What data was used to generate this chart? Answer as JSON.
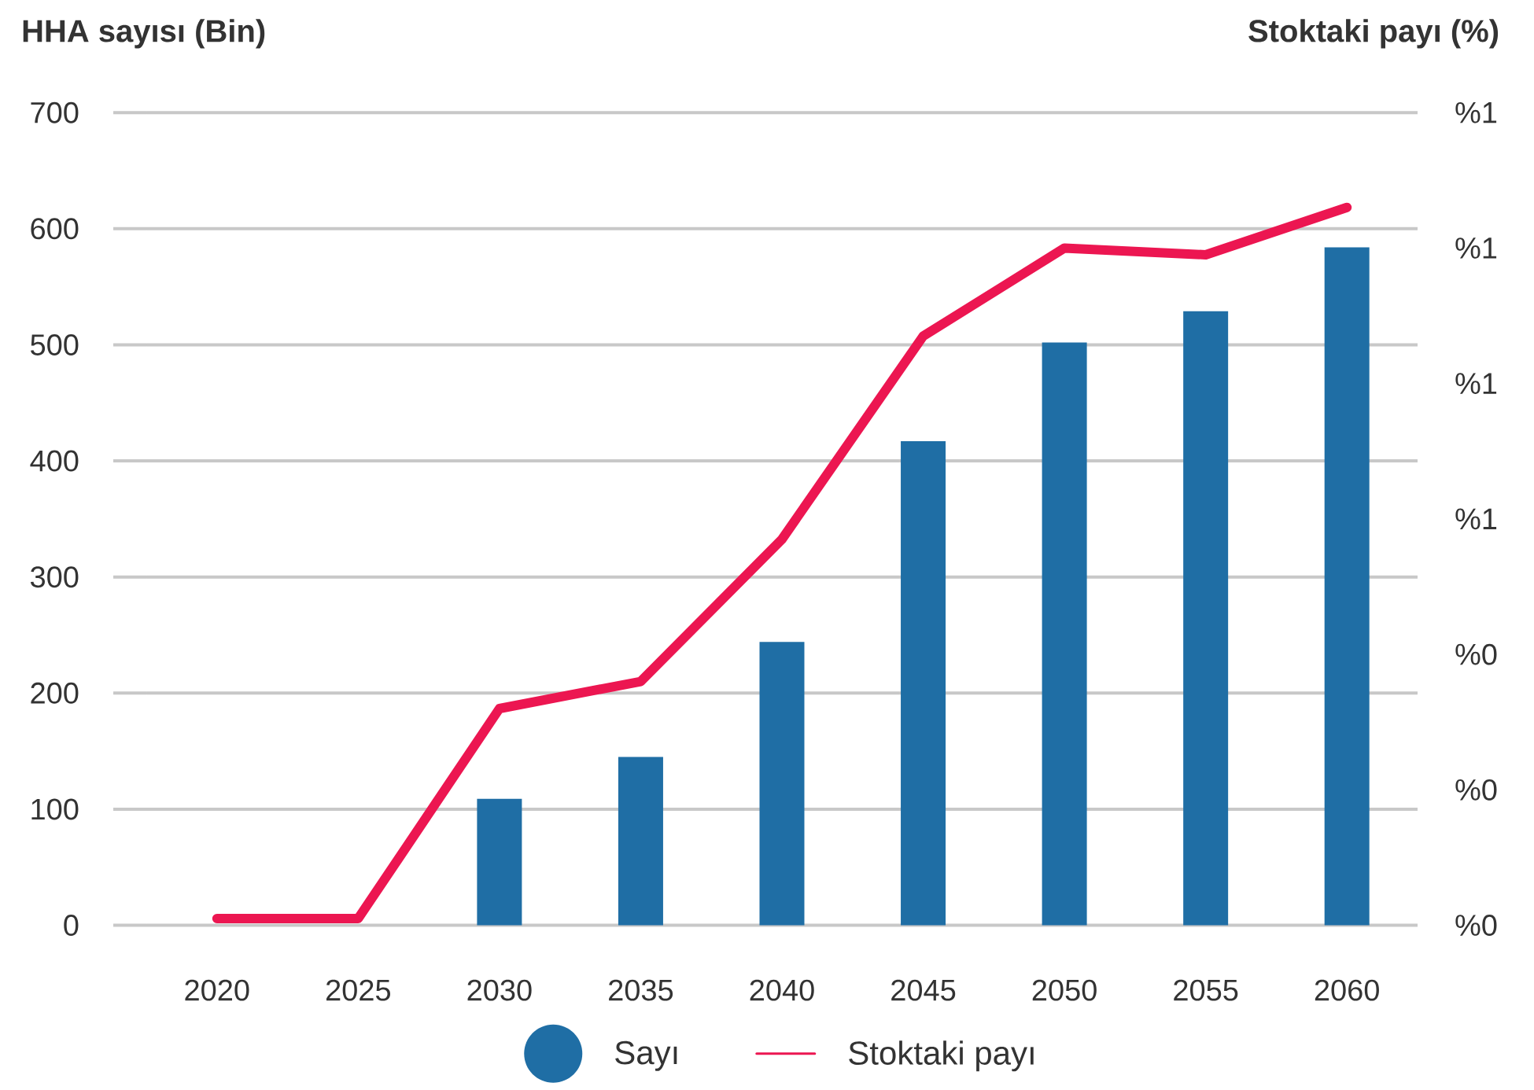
{
  "chart_data": {
    "type": "bar",
    "ylabel": "HHA sayısı (Bin)",
    "y2label": "Stoktaki payı (%)",
    "categories": [
      "2020",
      "2025",
      "2030",
      "2035",
      "2040",
      "2045",
      "2050",
      "2055",
      "2060"
    ],
    "series": [
      {
        "name": "Sayı",
        "color": "#1f6ea5",
        "values": [
          0,
          0,
          109,
          145,
          244,
          417,
          502,
          529,
          584
        ]
      },
      {
        "name": "Stoktaki payı",
        "type": "line",
        "axis": "y2",
        "color": "#ec1651",
        "values": [
          0.01,
          0.01,
          0.32,
          0.36,
          0.57,
          0.87,
          1.0,
          0.99,
          1.06
        ]
      }
    ],
    "ylim": [
      0,
      700
    ],
    "yticks": [
      0,
      100,
      200,
      300,
      400,
      500,
      600,
      700
    ],
    "y2lim": [
      0,
      1.2
    ],
    "y2ticks": [
      {
        "value": 0,
        "label": "%0"
      },
      {
        "value": 0.2,
        "label": "%0"
      },
      {
        "value": 0.4,
        "label": "%0"
      },
      {
        "value": 0.6,
        "label": "%1"
      },
      {
        "value": 0.8,
        "label": "%1"
      },
      {
        "value": 1.0,
        "label": "%1"
      },
      {
        "value": 1.2,
        "label": "%1"
      }
    ],
    "grid": "y",
    "legend": "bottom",
    "marker": "none"
  }
}
